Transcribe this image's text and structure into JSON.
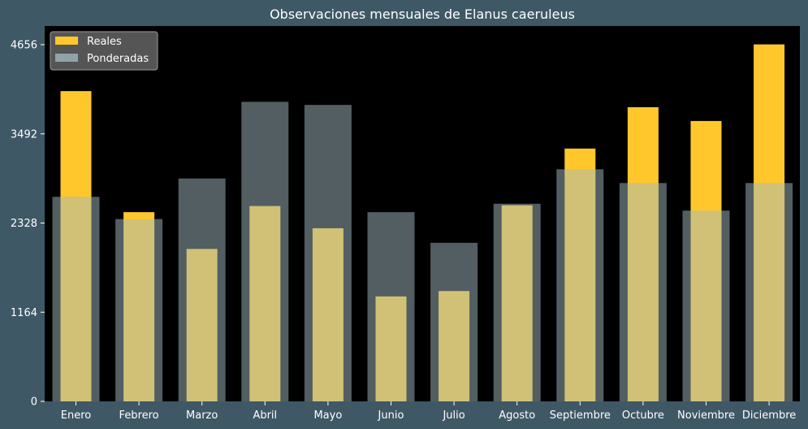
{
  "chart_data": {
    "type": "bar",
    "title": "Observaciones mensuales de Elanus caeruleus",
    "xlabel": "",
    "ylabel": "",
    "categories": [
      "Enero",
      "Febrero",
      "Marzo",
      "Abril",
      "Mayo",
      "Junio",
      "Julio",
      "Agosto",
      "Septiembre",
      "Octubre",
      "Noviembre",
      "Diciembre"
    ],
    "series": [
      {
        "name": "Reales",
        "color": "#ffc72c",
        "values": [
          4050,
          2470,
          1990,
          2550,
          2260,
          1370,
          1440,
          2560,
          3300,
          3840,
          3660,
          4660
        ]
      },
      {
        "name": "Ponderadas",
        "color": "#8fa3a8",
        "values": [
          2670,
          2380,
          2910,
          3910,
          3870,
          2470,
          2070,
          2580,
          3030,
          2850,
          2490,
          2850
        ]
      }
    ],
    "ylim": [
      0,
      4900
    ],
    "yticks": [
      0,
      1164,
      2328,
      3492,
      4656
    ],
    "grid": false,
    "legend_position": "top-left",
    "colors": {
      "background": "#3f5866",
      "plot_area": "#000000",
      "text": "#ffffff"
    }
  }
}
